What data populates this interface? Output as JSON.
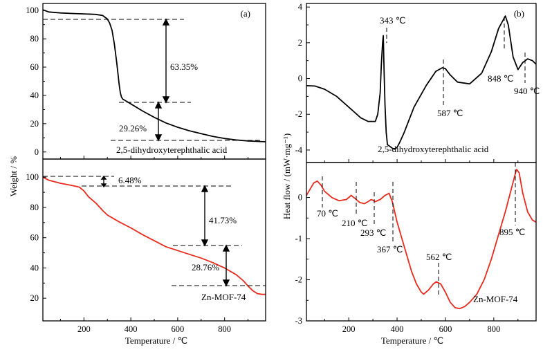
{
  "chart_data": [
    {
      "id": "tga-ligand",
      "panel": "(a)",
      "type": "line",
      "xlabel": "Temperature / ℃",
      "ylabel": "Weight / %",
      "xlim": [
        25,
        975
      ],
      "ylim": [
        -5,
        105
      ],
      "xticks": [
        200,
        400,
        600,
        800
      ],
      "yticks": [
        0,
        20,
        40,
        60,
        80,
        100
      ],
      "series": [
        {
          "name": "2,5-dihydroxyterephthalic acid",
          "color": "#000000",
          "x": [
            25,
            50,
            100,
            150,
            200,
            250,
            280,
            300,
            310,
            320,
            330,
            340,
            350,
            355,
            360,
            365,
            370,
            380,
            400,
            450,
            500,
            550,
            600,
            650,
            700,
            750,
            800,
            850,
            900,
            950,
            975
          ],
          "y": [
            100.5,
            99,
            98.3,
            97.9,
            97.6,
            97.3,
            96.5,
            94,
            91,
            86,
            76,
            63,
            48,
            42,
            39,
            37.5,
            37,
            36,
            34,
            29,
            24.5,
            20.5,
            17.5,
            15,
            13,
            11,
            9.5,
            8.5,
            7.8,
            7.4,
            7.2
          ]
        }
      ],
      "annotations": [
        {
          "text": "63.35%"
        },
        {
          "text": "29.26%"
        }
      ]
    },
    {
      "id": "tga-mof",
      "type": "line",
      "xlabel": "Temperature / ℃",
      "ylabel": "Weight / %",
      "xlim": [
        25,
        975
      ],
      "ylim": [
        5,
        112
      ],
      "xticks": [
        200,
        400,
        600,
        800
      ],
      "yticks": [
        20,
        40,
        60,
        80,
        100
      ],
      "series": [
        {
          "name": "Zn-MOF-74",
          "color": "#e8291c",
          "x": [
            25,
            50,
            100,
            150,
            180,
            200,
            220,
            250,
            280,
            300,
            350,
            400,
            450,
            500,
            550,
            600,
            650,
            700,
            750,
            800,
            850,
            880,
            900,
            920,
            940,
            960,
            975
          ],
          "y": [
            100,
            98,
            96,
            94.5,
            93.5,
            91,
            87,
            83,
            78,
            75,
            70.5,
            66.5,
            62,
            58,
            54,
            51.5,
            49,
            46.5,
            43.5,
            40,
            35.5,
            31.5,
            28,
            25,
            23,
            22.5,
            22.5
          ]
        }
      ],
      "annotations": [
        {
          "text": "6.48%"
        },
        {
          "text": "41.73%"
        },
        {
          "text": "28.76%"
        }
      ]
    },
    {
      "id": "dsc-ligand",
      "panel": "(b)",
      "type": "line",
      "xlabel": "Temperature / ℃",
      "ylabel": "Heat flow / (mW·mg⁻¹)",
      "xlim": [
        25,
        975
      ],
      "ylim": [
        -4.7,
        4.2
      ],
      "xticks": [
        200,
        400,
        600,
        800
      ],
      "yticks": [
        -4,
        -2,
        0,
        2,
        4
      ],
      "series": [
        {
          "name": "2,5-dihydroxyterephthalic acid",
          "color": "#000000",
          "x": [
            25,
            60,
            100,
            150,
            200,
            250,
            280,
            310,
            320,
            330,
            335,
            340,
            343,
            346,
            350,
            355,
            360,
            370,
            380,
            390,
            400,
            410,
            430,
            470,
            520,
            560,
            587,
            600,
            620,
            650,
            700,
            750,
            790,
            820,
            848,
            860,
            880,
            900,
            920,
            940,
            960,
            975
          ],
          "y": [
            -0.4,
            -0.42,
            -0.6,
            -1.0,
            -1.6,
            -2.2,
            -2.4,
            -2.4,
            -2.0,
            -0.8,
            0.8,
            2.0,
            2.4,
            0.5,
            -1.5,
            -3.0,
            -3.7,
            -3.8,
            -3.9,
            -3.95,
            -3.85,
            -3.6,
            -3.0,
            -1.6,
            -0.4,
            0.4,
            0.6,
            0.55,
            0.2,
            -0.2,
            -0.3,
            0.3,
            1.5,
            2.8,
            3.5,
            3.0,
            1.2,
            0.5,
            0.9,
            1.1,
            1.0,
            0.8
          ]
        }
      ],
      "peaks": [
        {
          "label": "343 ℃",
          "x": 343,
          "y": 2.4
        },
        {
          "label": "587 ℃",
          "x": 587,
          "y": 0.6
        },
        {
          "label": "848 ℃",
          "x": 848,
          "y": 3.5
        },
        {
          "label": "940 ℃",
          "x": 940,
          "y": 1.1
        }
      ]
    },
    {
      "id": "dsc-mof",
      "type": "line",
      "xlabel": "Temperature / ℃",
      "ylabel": "Heat flow / (mW·mg⁻¹)",
      "xlim": [
        25,
        975
      ],
      "ylim": [
        -3,
        0.85
      ],
      "xticks": [
        200,
        400,
        600,
        800
      ],
      "yticks": [
        -3,
        -2,
        -1,
        0
      ],
      "series": [
        {
          "name": "Zn-MOF-74",
          "color": "#e8291c",
          "x": [
            25,
            40,
            55,
            70,
            85,
            100,
            130,
            160,
            190,
            210,
            225,
            245,
            265,
            280,
            293,
            310,
            330,
            350,
            367,
            380,
            400,
            420,
            440,
            460,
            480,
            500,
            510,
            530,
            550,
            562,
            580,
            600,
            620,
            640,
            660,
            680,
            700,
            730,
            760,
            790,
            820,
            850,
            870,
            890,
            895,
            905,
            920,
            940,
            960,
            975
          ],
          "y": [
            0.05,
            0.2,
            0.35,
            0.4,
            0.3,
            0.15,
            0.0,
            -0.08,
            -0.05,
            0.05,
            -0.02,
            -0.12,
            -0.15,
            -0.1,
            -0.05,
            -0.1,
            -0.05,
            0.05,
            0.1,
            -0.1,
            -0.6,
            -1.0,
            -1.4,
            -1.8,
            -2.1,
            -2.3,
            -2.35,
            -2.25,
            -2.1,
            -2.05,
            -2.1,
            -2.3,
            -2.55,
            -2.68,
            -2.7,
            -2.65,
            -2.55,
            -2.35,
            -2.0,
            -1.5,
            -0.9,
            -0.3,
            0.15,
            0.6,
            0.68,
            0.6,
            0.1,
            -0.35,
            -0.55,
            -0.6
          ]
        }
      ],
      "peaks": [
        {
          "label": "70 ℃",
          "x": 70,
          "y": 0.4
        },
        {
          "label": "210 ℃",
          "x": 210,
          "y": 0.05
        },
        {
          "label": "293 ℃",
          "x": 293,
          "y": -0.05
        },
        {
          "label": "367 ℃",
          "x": 367,
          "y": 0.1
        },
        {
          "label": "562 ℃",
          "x": 562,
          "y": -2.05
        },
        {
          "label": "895 ℃",
          "x": 895,
          "y": 0.68
        }
      ]
    }
  ]
}
